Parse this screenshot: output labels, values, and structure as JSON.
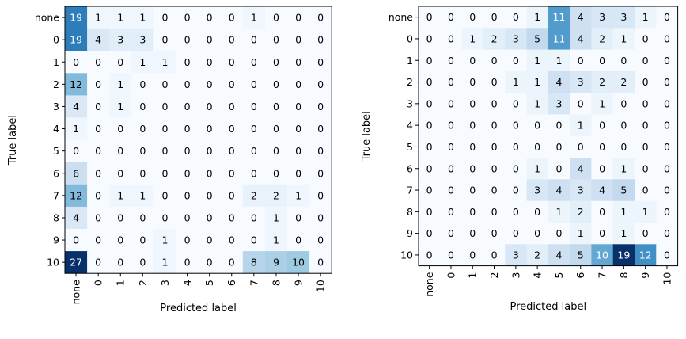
{
  "chart_data": [
    {
      "type": "heatmap",
      "title": "",
      "xlabel": "Predicted label",
      "ylabel": "True label",
      "x_categories": [
        "none",
        "0",
        "1",
        "2",
        "3",
        "4",
        "5",
        "6",
        "7",
        "8",
        "9",
        "10"
      ],
      "y_categories": [
        "none",
        "0",
        "1",
        "2",
        "3",
        "4",
        "5",
        "6",
        "7",
        "8",
        "9",
        "10"
      ],
      "colormap": "Blues",
      "vmin": 0,
      "vmax": 27,
      "values": [
        [
          19,
          1,
          1,
          1,
          0,
          0,
          0,
          0,
          1,
          0,
          0,
          0
        ],
        [
          19,
          4,
          3,
          3,
          0,
          0,
          0,
          0,
          0,
          0,
          0,
          0
        ],
        [
          0,
          0,
          0,
          1,
          1,
          0,
          0,
          0,
          0,
          0,
          0,
          0
        ],
        [
          12,
          0,
          1,
          0,
          0,
          0,
          0,
          0,
          0,
          0,
          0,
          0
        ],
        [
          4,
          0,
          1,
          0,
          0,
          0,
          0,
          0,
          0,
          0,
          0,
          0
        ],
        [
          1,
          0,
          0,
          0,
          0,
          0,
          0,
          0,
          0,
          0,
          0,
          0
        ],
        [
          0,
          0,
          0,
          0,
          0,
          0,
          0,
          0,
          0,
          0,
          0,
          0
        ],
        [
          6,
          0,
          0,
          0,
          0,
          0,
          0,
          0,
          0,
          0,
          0,
          0
        ],
        [
          12,
          0,
          1,
          1,
          0,
          0,
          0,
          0,
          2,
          2,
          1,
          0
        ],
        [
          4,
          0,
          0,
          0,
          0,
          0,
          0,
          0,
          0,
          1,
          0,
          0
        ],
        [
          0,
          0,
          0,
          0,
          1,
          0,
          0,
          0,
          0,
          1,
          0,
          0
        ],
        [
          27,
          0,
          0,
          0,
          1,
          0,
          0,
          0,
          8,
          9,
          10,
          0
        ]
      ]
    },
    {
      "type": "heatmap",
      "title": "",
      "xlabel": "Predicted label",
      "ylabel": "True label",
      "x_categories": [
        "none",
        "0",
        "1",
        "2",
        "3",
        "4",
        "5",
        "6",
        "7",
        "8",
        "9",
        "10"
      ],
      "y_categories": [
        "none",
        "0",
        "1",
        "2",
        "3",
        "4",
        "5",
        "6",
        "7",
        "8",
        "9",
        "10"
      ],
      "colormap": "Blues",
      "vmin": 0,
      "vmax": 19,
      "values": [
        [
          0,
          0,
          0,
          0,
          0,
          1,
          11,
          4,
          3,
          3,
          1,
          0
        ],
        [
          0,
          0,
          1,
          2,
          3,
          5,
          11,
          4,
          2,
          1,
          0,
          0
        ],
        [
          0,
          0,
          0,
          0,
          0,
          1,
          1,
          0,
          0,
          0,
          0,
          0
        ],
        [
          0,
          0,
          0,
          0,
          1,
          1,
          4,
          3,
          2,
          2,
          0,
          0
        ],
        [
          0,
          0,
          0,
          0,
          0,
          1,
          3,
          0,
          1,
          0,
          0,
          0
        ],
        [
          0,
          0,
          0,
          0,
          0,
          0,
          0,
          1,
          0,
          0,
          0,
          0
        ],
        [
          0,
          0,
          0,
          0,
          0,
          0,
          0,
          0,
          0,
          0,
          0,
          0
        ],
        [
          0,
          0,
          0,
          0,
          0,
          1,
          0,
          4,
          0,
          1,
          0,
          0
        ],
        [
          0,
          0,
          0,
          0,
          0,
          3,
          4,
          3,
          4,
          5,
          0,
          0
        ],
        [
          0,
          0,
          0,
          0,
          0,
          0,
          1,
          2,
          0,
          1,
          1,
          0
        ],
        [
          0,
          0,
          0,
          0,
          0,
          0,
          0,
          1,
          0,
          1,
          0,
          0
        ],
        [
          0,
          0,
          0,
          0,
          3,
          2,
          4,
          5,
          10,
          19,
          12,
          0
        ]
      ]
    }
  ]
}
